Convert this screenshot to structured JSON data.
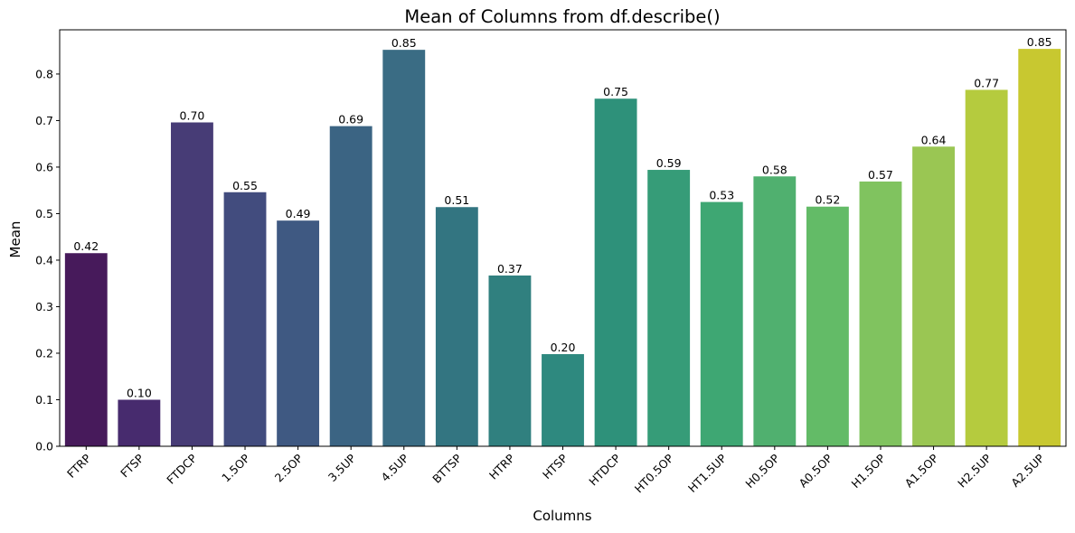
{
  "chart_data": {
    "type": "bar",
    "title": "Mean of Columns from df.describe()",
    "xlabel": "Columns",
    "ylabel": "Mean",
    "categories": [
      "FTRP",
      "FTSP",
      "FTDCP",
      "1.5OP",
      "2.5OP",
      "3.5UP",
      "4.5UP",
      "BTTSP",
      "HTRP",
      "HTSP",
      "HTDCP",
      "HT0.5OP",
      "HT1.5UP",
      "H0.5OP",
      "A0.5OP",
      "H1.5OP",
      "A1.5OP",
      "H2.5UP",
      "A2.5UP"
    ],
    "values": [
      0.415,
      0.1,
      0.696,
      0.546,
      0.485,
      0.688,
      0.852,
      0.514,
      0.367,
      0.198,
      0.747,
      0.594,
      0.525,
      0.58,
      0.515,
      0.569,
      0.644,
      0.766,
      0.854
    ],
    "value_labels": [
      "0.42",
      "0.10",
      "0.70",
      "0.55",
      "0.49",
      "0.69",
      "0.85",
      "0.51",
      "0.37",
      "0.20",
      "0.75",
      "0.59",
      "0.53",
      "0.58",
      "0.52",
      "0.57",
      "0.64",
      "0.77",
      "0.85"
    ],
    "colors": [
      "#471A5B",
      "#472B6E",
      "#473C76",
      "#424C7E",
      "#3F5982",
      "#3B6483",
      "#3A6C84",
      "#337581",
      "#30807F",
      "#2E897F",
      "#2E917A",
      "#369C78",
      "#3EA773",
      "#50B06F",
      "#63BB67",
      "#80C35F",
      "#9AC653",
      "#B5CB3E",
      "#C8C830"
    ],
    "yticks": [
      "0.0",
      "0.1",
      "0.2",
      "0.3",
      "0.4",
      "0.5",
      "0.6",
      "0.7",
      "0.8"
    ],
    "ylim": [
      0,
      0.895
    ],
    "grid": false,
    "legend": "none"
  }
}
